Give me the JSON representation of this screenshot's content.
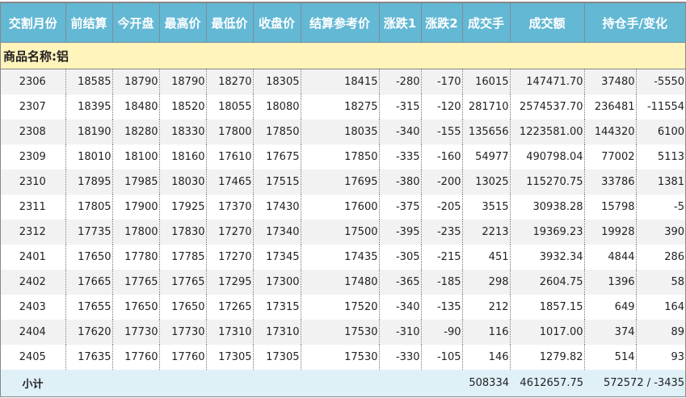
{
  "headers": [
    "交割月份",
    "前结算",
    "今开盘",
    "最高价",
    "最低价",
    "收盘价",
    "结算参考价",
    "涨跌1",
    "涨跌2",
    "成交手",
    "成交额",
    "持仓手/变化"
  ],
  "product_label": "商品名称:铝",
  "rows": [
    [
      "2306",
      "18585",
      "18790",
      "18790",
      "18270",
      "18305",
      "18415",
      "-280",
      "-170",
      "16015",
      "147471.70",
      "37480",
      "-5550"
    ],
    [
      "2307",
      "18395",
      "18480",
      "18520",
      "18055",
      "18080",
      "18275",
      "-315",
      "-120",
      "281710",
      "2574537.70",
      "236481",
      "-11554"
    ],
    [
      "2308",
      "18190",
      "18280",
      "18330",
      "17800",
      "17850",
      "18035",
      "-340",
      "-155",
      "135656",
      "1223581.00",
      "144320",
      "6100"
    ],
    [
      "2309",
      "18010",
      "18100",
      "18160",
      "17610",
      "17675",
      "17850",
      "-335",
      "-160",
      "54977",
      "490798.04",
      "77002",
      "5113"
    ],
    [
      "2310",
      "17895",
      "17985",
      "18030",
      "17465",
      "17515",
      "17695",
      "-380",
      "-200",
      "13025",
      "115270.75",
      "33786",
      "1381"
    ],
    [
      "2311",
      "17805",
      "17900",
      "17925",
      "17370",
      "17430",
      "17600",
      "-375",
      "-205",
      "3515",
      "30938.28",
      "15798",
      "-5"
    ],
    [
      "2312",
      "17735",
      "17800",
      "17830",
      "17270",
      "17340",
      "17500",
      "-395",
      "-235",
      "2213",
      "19369.23",
      "19928",
      "390"
    ],
    [
      "2401",
      "17650",
      "17780",
      "17785",
      "17270",
      "17345",
      "17435",
      "-305",
      "-215",
      "451",
      "3932.34",
      "4844",
      "286"
    ],
    [
      "2402",
      "17665",
      "17765",
      "17765",
      "17295",
      "17300",
      "17480",
      "-365",
      "-185",
      "298",
      "2604.75",
      "1396",
      "58"
    ],
    [
      "2403",
      "17655",
      "17650",
      "17650",
      "17265",
      "17315",
      "17520",
      "-340",
      "-135",
      "212",
      "1857.15",
      "649",
      "164"
    ],
    [
      "2404",
      "17620",
      "17730",
      "17730",
      "17310",
      "17310",
      "17530",
      "-310",
      "-90",
      "116",
      "1017.00",
      "374",
      "89"
    ],
    [
      "2405",
      "17635",
      "17760",
      "17760",
      "17305",
      "17305",
      "17530",
      "-330",
      "-105",
      "146",
      "1279.82",
      "514",
      "93"
    ]
  ],
  "subtotal": {
    "label": "小计",
    "volume": "508334",
    "turnover": "4612657.75",
    "open_interest": "572572 / -3435"
  },
  "colors": {
    "header_bg": "#63b8d4",
    "product_bg": "#fff4bb",
    "subtotal_bg": "#dff0f7",
    "alt_row_bg": "#f2f2f2"
  }
}
